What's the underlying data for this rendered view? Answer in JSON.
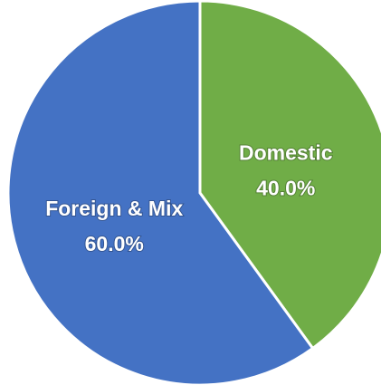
{
  "chart_data": {
    "type": "pie",
    "categories": [
      "Domestic",
      "Foreign & Mix"
    ],
    "values": [
      40,
      60
    ],
    "value_labels": [
      "40.0%",
      "60.0%"
    ],
    "colors": [
      "#70ad47",
      "#4472c4"
    ]
  }
}
